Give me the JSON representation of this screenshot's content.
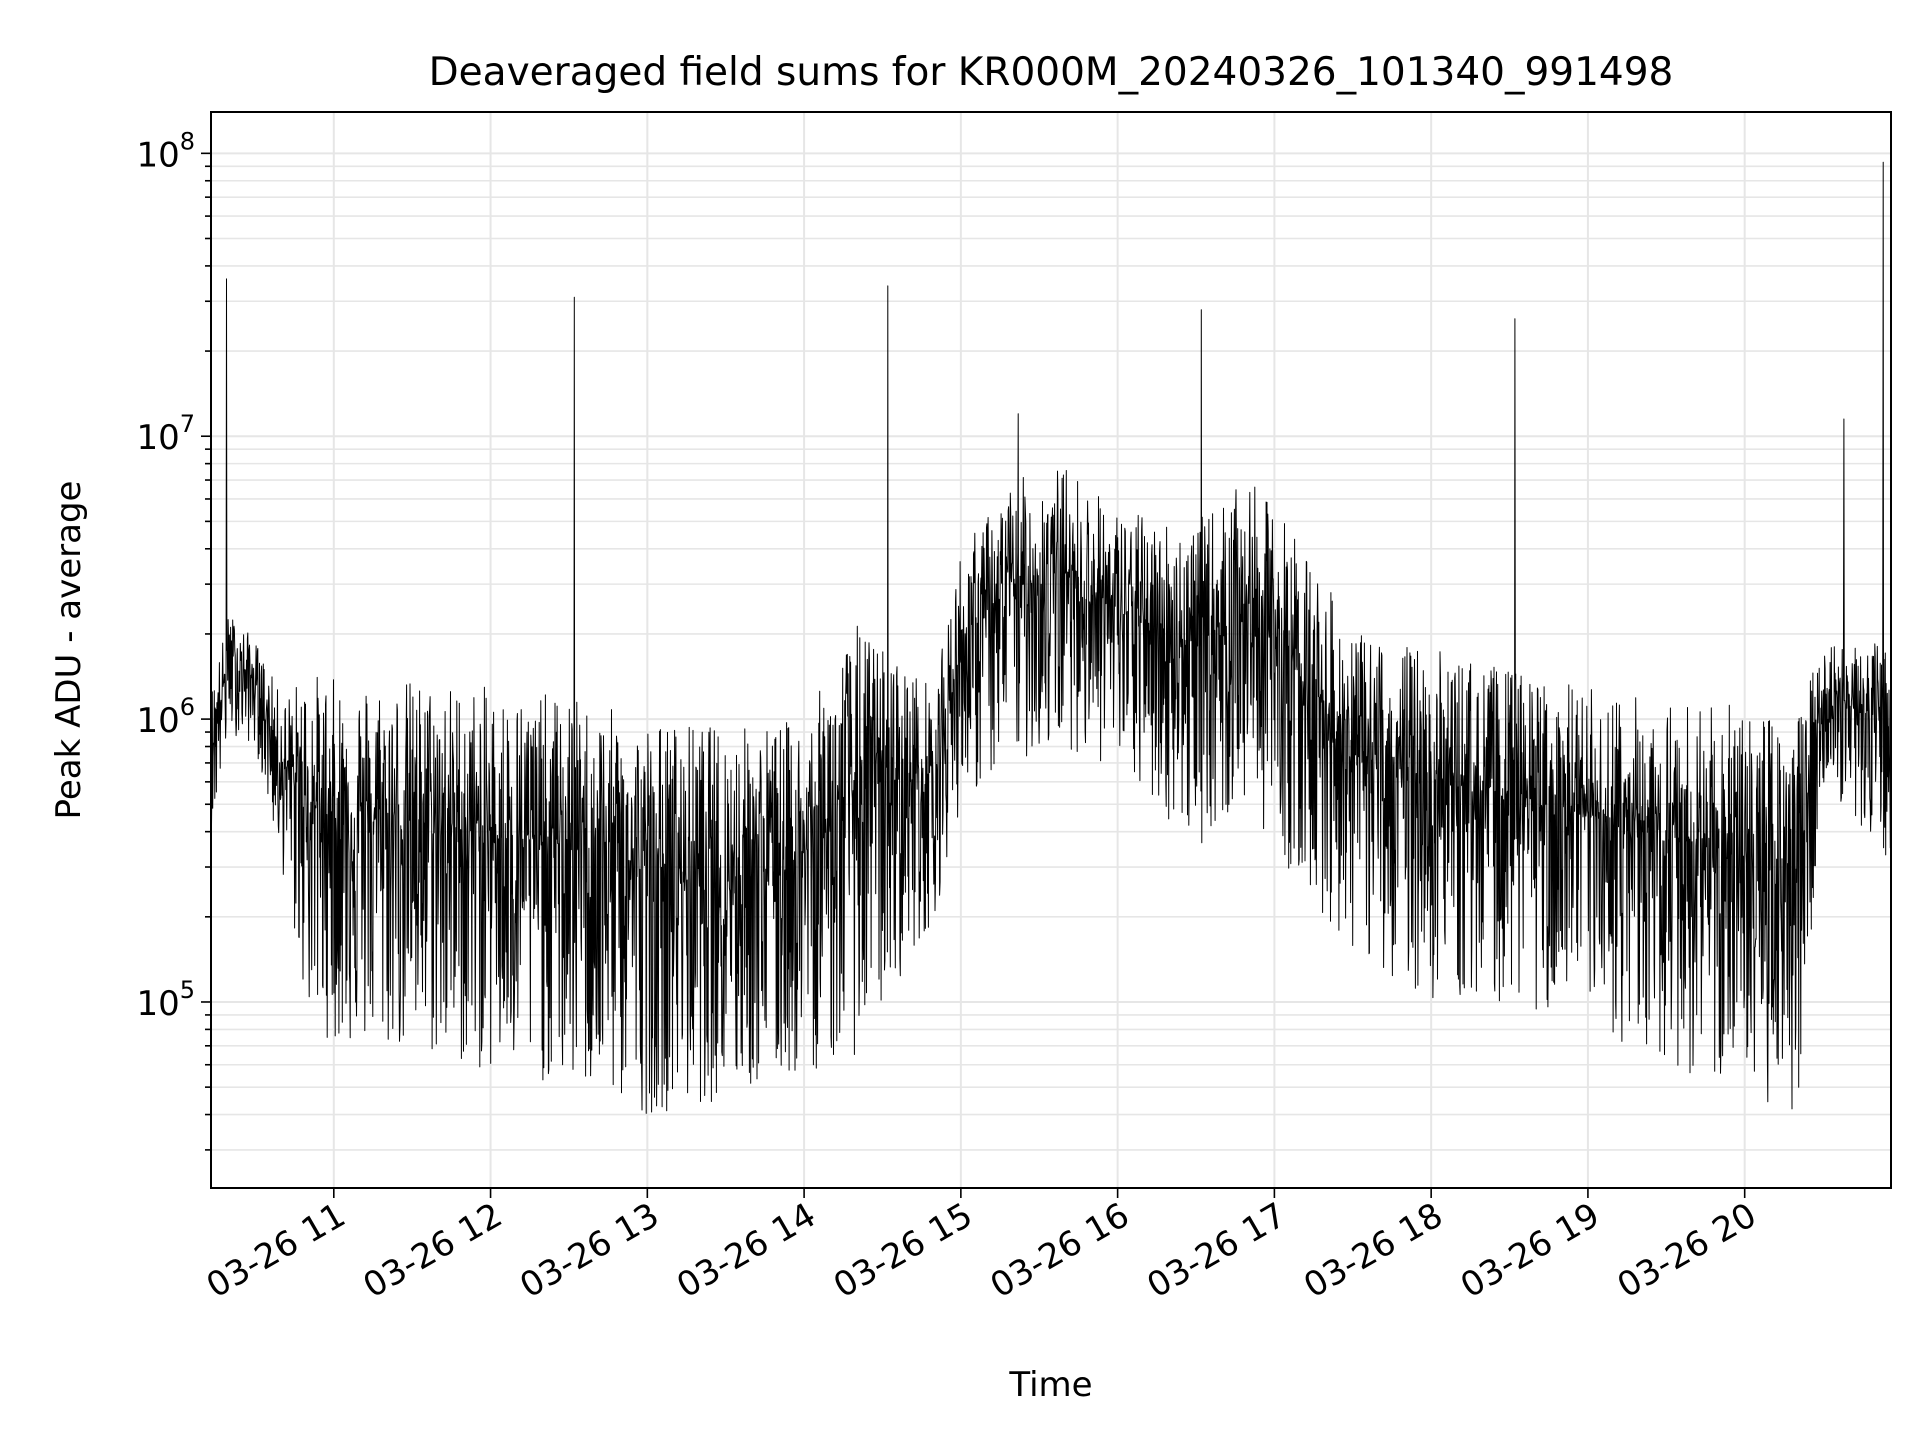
{
  "chart_data": {
    "type": "line",
    "title": "Deaveraged field sums for KR000M_20240326_101340_991498",
    "xlabel": "Time",
    "ylabel": "Peak ADU - average",
    "y_scale": "log",
    "ylim": [
      22000,
      140000000
    ],
    "xlim": [
      "2024-03-26 10:13",
      "2024-03-26 20:56"
    ],
    "grid": true,
    "legend": "none",
    "line_color": "#000000",
    "grid_color": "#e6e6e6",
    "x_tick_labels": [
      "03-26 11",
      "03-26 12",
      "03-26 13",
      "03-26 14",
      "03-26 15",
      "03-26 16",
      "03-26 17",
      "03-26 18",
      "03-26 19",
      "03-26 20"
    ],
    "x_tick_times": [
      "2024-03-26 11:00",
      "2024-03-26 12:00",
      "2024-03-26 13:00",
      "2024-03-26 14:00",
      "2024-03-26 15:00",
      "2024-03-26 16:00",
      "2024-03-26 17:00",
      "2024-03-26 18:00",
      "2024-03-26 19:00",
      "2024-03-26 20:00"
    ],
    "y_tick_labels": [
      {
        "base": "10",
        "exp": "5",
        "value": 100000
      },
      {
        "base": "10",
        "exp": "6",
        "value": 1000000
      },
      {
        "base": "10",
        "exp": "7",
        "value": 10000000
      },
      {
        "base": "10",
        "exp": "8",
        "value": 100000000
      }
    ],
    "series": [
      {
        "envelope": [
          {
            "time": "2024-03-26 10:13",
            "high": 1300000,
            "low": 380000
          },
          {
            "time": "2024-03-26 10:20",
            "high": 2400000,
            "low": 900000
          },
          {
            "time": "2024-03-26 10:30",
            "high": 1900000,
            "low": 800000
          },
          {
            "time": "2024-03-26 10:40",
            "high": 1200000,
            "low": 300000
          },
          {
            "time": "2024-03-26 10:50",
            "high": 1500000,
            "low": 90000
          },
          {
            "time": "2024-03-26 11:00",
            "high": 1400000,
            "low": 70000
          },
          {
            "time": "2024-03-26 11:30",
            "high": 1400000,
            "low": 65000
          },
          {
            "time": "2024-03-26 12:00",
            "high": 1300000,
            "low": 55000
          },
          {
            "time": "2024-03-26 12:30",
            "high": 1200000,
            "low": 50000
          },
          {
            "time": "2024-03-26 13:00",
            "high": 1000000,
            "low": 40000
          },
          {
            "time": "2024-03-26 13:30",
            "high": 950000,
            "low": 45000
          },
          {
            "time": "2024-03-26 14:00",
            "high": 1000000,
            "low": 55000
          },
          {
            "time": "2024-03-26 14:20",
            "high": 2200000,
            "low": 65000
          },
          {
            "time": "2024-03-26 14:50",
            "high": 1300000,
            "low": 200000
          },
          {
            "time": "2024-03-26 15:00",
            "high": 4000000,
            "low": 500000
          },
          {
            "time": "2024-03-26 15:20",
            "high": 7000000,
            "low": 700000
          },
          {
            "time": "2024-03-26 15:40",
            "high": 8000000,
            "low": 800000
          },
          {
            "time": "2024-03-26 16:00",
            "high": 5500000,
            "low": 650000
          },
          {
            "time": "2024-03-26 16:30",
            "high": 5000000,
            "low": 350000
          },
          {
            "time": "2024-03-26 16:50",
            "high": 7000000,
            "low": 500000
          },
          {
            "time": "2024-03-26 17:10",
            "high": 4500000,
            "low": 250000
          },
          {
            "time": "2024-03-26 17:30",
            "high": 2000000,
            "low": 150000
          },
          {
            "time": "2024-03-26 18:00",
            "high": 1800000,
            "low": 100000
          },
          {
            "time": "2024-03-26 18:30",
            "high": 1500000,
            "low": 100000
          },
          {
            "time": "2024-03-26 19:00",
            "high": 1300000,
            "low": 80000
          },
          {
            "time": "2024-03-26 19:30",
            "high": 1200000,
            "low": 60000
          },
          {
            "time": "2024-03-26 20:00",
            "high": 1100000,
            "low": 45000
          },
          {
            "time": "2024-03-26 20:20",
            "high": 1000000,
            "low": 40000
          },
          {
            "time": "2024-03-26 20:30",
            "high": 2000000,
            "low": 600000
          },
          {
            "time": "2024-03-26 20:56",
            "high": 1800000,
            "low": 300000
          }
        ],
        "spikes": [
          {
            "time": "2024-03-26 10:19",
            "value": 36000000
          },
          {
            "time": "2024-03-26 12:32",
            "value": 31000000
          },
          {
            "time": "2024-03-26 14:32",
            "value": 34000000
          },
          {
            "time": "2024-03-26 15:22",
            "value": 12000000
          },
          {
            "time": "2024-03-26 16:32",
            "value": 28000000
          },
          {
            "time": "2024-03-26 18:32",
            "value": 26000000
          },
          {
            "time": "2024-03-26 20:38",
            "value": 11500000
          },
          {
            "time": "2024-03-26 20:53",
            "value": 93000000
          }
        ]
      }
    ]
  }
}
